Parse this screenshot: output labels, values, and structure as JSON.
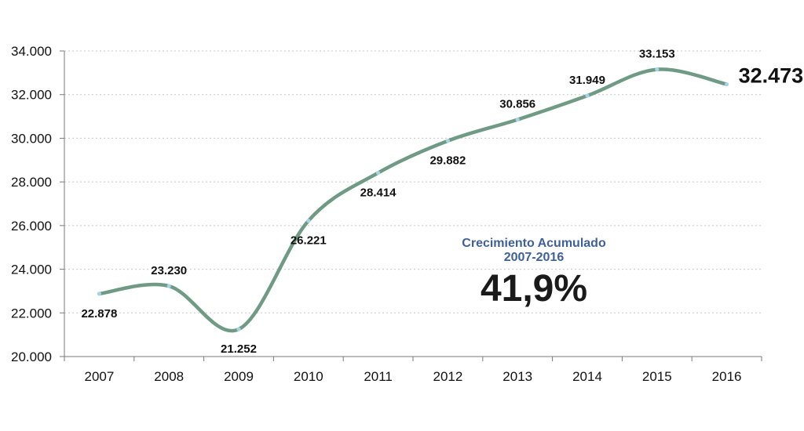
{
  "colors": {
    "line": "#6f9a84",
    "marker": "#a7d3e9",
    "grid": "#c8c8c8",
    "axis": "#7a7a7a",
    "annotation_title": "#3e6199"
  },
  "annotation": {
    "title_line1": "Crecimiento Acumulado",
    "title_line2": "2007-2016",
    "value": "41,9%"
  },
  "chart_data": {
    "type": "line",
    "title": "",
    "xlabel": "",
    "ylabel": "",
    "categories": [
      "2007",
      "2008",
      "2009",
      "2010",
      "2011",
      "2012",
      "2013",
      "2014",
      "2015",
      "2016"
    ],
    "values": [
      22878,
      23230,
      21252,
      26221,
      28414,
      29882,
      30856,
      31949,
      33153,
      32473
    ],
    "value_labels": [
      "22.878",
      "23.230",
      "21.252",
      "26.221",
      "28.414",
      "29.882",
      "30.856",
      "31.949",
      "33.153",
      "32.473"
    ],
    "ylim": [
      20000,
      34000
    ],
    "yticks": [
      20000,
      22000,
      24000,
      26000,
      28000,
      30000,
      32000,
      34000
    ],
    "ytick_labels": [
      "20.000",
      "22.000",
      "24.000",
      "26.000",
      "28.000",
      "30.000",
      "32.000",
      "34.000"
    ],
    "grid": true,
    "legend": "none"
  }
}
